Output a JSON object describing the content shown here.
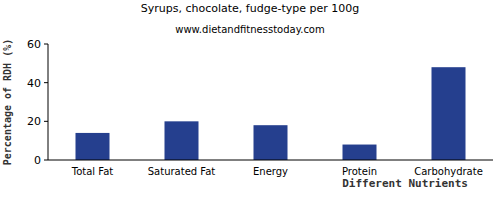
{
  "chart_data": {
    "type": "bar",
    "title": "Syrups, chocolate, fudge-type per 100g",
    "subtitle": "www.dietandfitnesstoday.com",
    "x_label": "Different Nutrients",
    "y_label": "Percentage of RDH (%)",
    "categories": [
      "Total Fat",
      "Saturated Fat",
      "Energy",
      "Protein",
      "Carbohydrate"
    ],
    "values": [
      14,
      20,
      18,
      8,
      48
    ],
    "color": "#253f8e",
    "ylim": [
      0,
      60
    ],
    "yticks": [
      0,
      20,
      40,
      60
    ],
    "grid": false
  }
}
